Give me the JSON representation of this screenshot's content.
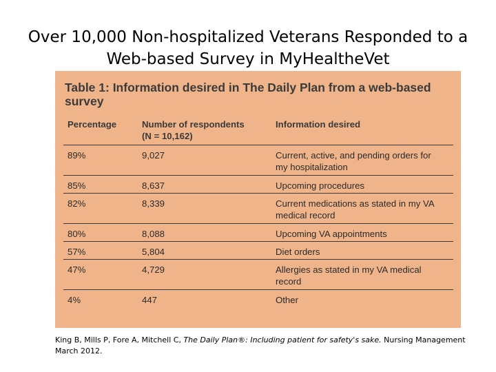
{
  "slide": {
    "title_line1": "Over 10,000 Non-hospitalized Veterans Responded to a",
    "title_line2": "Web-based Survey in MyHealtheVet"
  },
  "table": {
    "caption": "Table 1: Information desired in The Daily Plan from a web-based survey",
    "headers": {
      "percentage": "Percentage",
      "respondents_line1": "Number of respondents",
      "respondents_line2": "(N = 10,162)",
      "info": "Information desired"
    },
    "rows": [
      {
        "pct": "89%",
        "num": "9,027",
        "info_line1": "Current, active, and pending orders for",
        "info_line2": "my hospitalization"
      },
      {
        "pct": "85%",
        "num": "8,637",
        "info_line1": "Upcoming procedures",
        "info_line2": ""
      },
      {
        "pct": "82%",
        "num": "8,339",
        "info_line1": "Current medications as stated in my VA",
        "info_line2": "medical record"
      },
      {
        "pct": "80%",
        "num": "8,088",
        "info_line1": "Upcoming VA appointments",
        "info_line2": ""
      },
      {
        "pct": "57%",
        "num": "5,804",
        "info_line1": "Diet orders",
        "info_line2": ""
      },
      {
        "pct": "47%",
        "num": "4,729",
        "info_line1": "Allergies as stated in my VA medical",
        "info_line2": "record"
      },
      {
        "pct": "4%",
        "num": "447",
        "info_line1": "Other",
        "info_line2": ""
      }
    ]
  },
  "citation": {
    "authors": "King B, Mills P, Fore A, Mitchell C, ",
    "work": "The Daily Plan®: Including patient for safety's sake.",
    "source": " Nursing Management",
    "date": "March 2012."
  },
  "colors": {
    "table_background": "#efb48a",
    "rule_lines": "#3a3a3a",
    "caption_text": "#3b3b3b"
  }
}
